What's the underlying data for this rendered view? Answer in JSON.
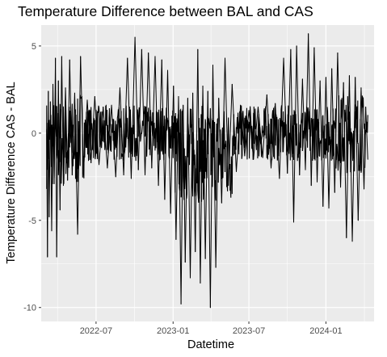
{
  "chart_data": {
    "type": "line",
    "title": "Temperature Difference between BAL and CAS",
    "xlabel": "Datetime",
    "ylabel": "Temperature Difference CAS - BAL",
    "x_range": [
      "2022-03-05",
      "2024-04-10"
    ],
    "xlim": [
      "2022-02-20",
      "2024-04-25"
    ],
    "ylim": [
      -10.8,
      6.2
    ],
    "x_ticks": [
      {
        "date": "2022-07-01",
        "label": "2022-07"
      },
      {
        "date": "2023-01-01",
        "label": "2023-01"
      },
      {
        "date": "2023-07-01",
        "label": "2023-07"
      },
      {
        "date": "2024-01-01",
        "label": "2024-01"
      }
    ],
    "y_ticks": [
      {
        "value": 5,
        "label": "5"
      },
      {
        "value": 0,
        "label": "0"
      },
      {
        "value": -5,
        "label": "-5"
      },
      {
        "value": -10,
        "label": "-10"
      }
    ],
    "grid": true,
    "panel_background": "#ebebeb",
    "grid_color": "#ffffff",
    "line_color": "#000000",
    "series": [
      {
        "points": [
          [
            "2022-03-05",
            0.2
          ],
          [
            "2022-03-07",
            -7.1
          ],
          [
            "2022-03-09",
            2.4
          ],
          [
            "2022-03-11",
            -4.8
          ],
          [
            "2022-03-14",
            1.8
          ],
          [
            "2022-03-17",
            -5.6
          ],
          [
            "2022-03-20",
            2.8
          ],
          [
            "2022-03-23",
            -2.9
          ],
          [
            "2022-03-26",
            4.3
          ],
          [
            "2022-03-29",
            -7.1
          ],
          [
            "2022-04-02",
            3.0
          ],
          [
            "2022-04-06",
            -4.4
          ],
          [
            "2022-04-10",
            4.4
          ],
          [
            "2022-04-14",
            -3.0
          ],
          [
            "2022-04-19",
            2.6
          ],
          [
            "2022-04-24",
            -2.7
          ],
          [
            "2022-04-29",
            4.2
          ],
          [
            "2022-05-05",
            -2.4
          ],
          [
            "2022-05-11",
            2.3
          ],
          [
            "2022-05-18",
            -5.8
          ],
          [
            "2022-05-25",
            4.4
          ],
          [
            "2022-06-01",
            -2.3
          ],
          [
            "2022-06-10",
            1.9
          ],
          [
            "2022-06-19",
            -1.7
          ],
          [
            "2022-06-28",
            2.1
          ],
          [
            "2022-07-08",
            -1.8
          ],
          [
            "2022-07-18",
            1.5
          ],
          [
            "2022-07-28",
            -2.0
          ],
          [
            "2022-08-07",
            1.6
          ],
          [
            "2022-08-17",
            -2.5
          ],
          [
            "2022-08-27",
            2.6
          ],
          [
            "2022-09-05",
            -2.4
          ],
          [
            "2022-09-14",
            4.3
          ],
          [
            "2022-09-23",
            -2.6
          ],
          [
            "2022-10-02",
            5.5
          ],
          [
            "2022-10-10",
            -2.1
          ],
          [
            "2022-10-18",
            4.8
          ],
          [
            "2022-10-26",
            -2.4
          ],
          [
            "2022-11-03",
            4.6
          ],
          [
            "2022-11-11",
            -2.0
          ],
          [
            "2022-11-19",
            4.4
          ],
          [
            "2022-11-27",
            -3.0
          ],
          [
            "2022-12-05",
            4.2
          ],
          [
            "2022-12-12",
            -3.8
          ],
          [
            "2022-12-19",
            3.6
          ],
          [
            "2022-12-26",
            -4.6
          ],
          [
            "2023-01-02",
            2.7
          ],
          [
            "2023-01-08",
            -6.1
          ],
          [
            "2023-01-14",
            2.1
          ],
          [
            "2023-01-20",
            -9.8
          ],
          [
            "2023-01-25",
            1.6
          ],
          [
            "2023-01-30",
            -7.4
          ],
          [
            "2023-02-05",
            2.0
          ],
          [
            "2023-02-11",
            -8.3
          ],
          [
            "2023-02-17",
            2.3
          ],
          [
            "2023-02-23",
            -6.8
          ],
          [
            "2023-03-01",
            4.8
          ],
          [
            "2023-03-07",
            -8.6
          ],
          [
            "2023-03-13",
            2.7
          ],
          [
            "2023-03-19",
            -7.2
          ],
          [
            "2023-03-25",
            2.4
          ],
          [
            "2023-03-31",
            -10.0
          ],
          [
            "2023-04-06",
            3.9
          ],
          [
            "2023-04-13",
            -7.7
          ],
          [
            "2023-04-20",
            2.0
          ],
          [
            "2023-04-27",
            -4.0
          ],
          [
            "2023-05-05",
            4.3
          ],
          [
            "2023-05-13",
            -3.0
          ],
          [
            "2023-05-22",
            2.8
          ],
          [
            "2023-06-01",
            -2.2
          ],
          [
            "2023-06-11",
            1.6
          ],
          [
            "2023-06-21",
            -1.3
          ],
          [
            "2023-07-01",
            1.3
          ],
          [
            "2023-07-12",
            -1.5
          ],
          [
            "2023-07-23",
            1.5
          ],
          [
            "2023-08-03",
            -1.4
          ],
          [
            "2023-08-13",
            2.2
          ],
          [
            "2023-08-23",
            -2.0
          ],
          [
            "2023-09-02",
            1.7
          ],
          [
            "2023-09-12",
            -2.6
          ],
          [
            "2023-09-22",
            4.3
          ],
          [
            "2023-10-01",
            -2.3
          ],
          [
            "2023-10-09",
            4.8
          ],
          [
            "2023-10-16",
            -5.1
          ],
          [
            "2023-10-23",
            5.0
          ],
          [
            "2023-10-30",
            -2.4
          ],
          [
            "2023-11-06",
            3.1
          ],
          [
            "2023-11-13",
            -2.1
          ],
          [
            "2023-11-20",
            5.7
          ],
          [
            "2023-11-27",
            -3.0
          ],
          [
            "2023-12-04",
            4.9
          ],
          [
            "2023-12-11",
            -2.8
          ],
          [
            "2023-12-18",
            3.0
          ],
          [
            "2023-12-25",
            -4.2
          ],
          [
            "2024-01-01",
            3.2
          ],
          [
            "2024-01-08",
            -4.3
          ],
          [
            "2024-01-15",
            3.7
          ],
          [
            "2024-01-22",
            -3.4
          ],
          [
            "2024-01-29",
            4.6
          ],
          [
            "2024-02-05",
            -3.1
          ],
          [
            "2024-02-12",
            2.9
          ],
          [
            "2024-02-19",
            -6.0
          ],
          [
            "2024-02-26",
            3.3
          ],
          [
            "2024-03-04",
            -6.2
          ],
          [
            "2024-03-11",
            3.2
          ],
          [
            "2024-03-18",
            -5.0
          ],
          [
            "2024-03-25",
            2.6
          ],
          [
            "2024-04-01",
            -3.2
          ],
          [
            "2024-04-05",
            1.5
          ],
          [
            "2024-04-10",
            -1.5
          ]
        ]
      }
    ]
  }
}
